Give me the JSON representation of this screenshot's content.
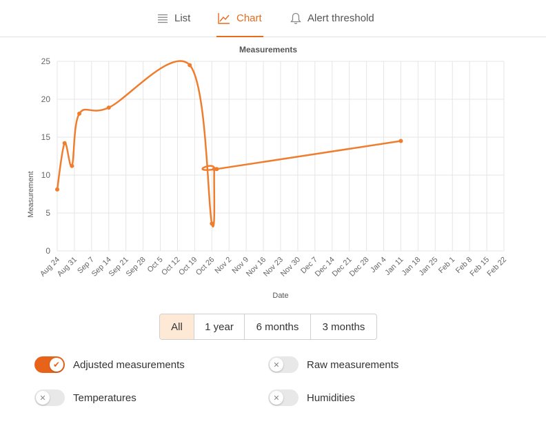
{
  "tabs": [
    {
      "label": "List",
      "icon": "list-icon",
      "active": false
    },
    {
      "label": "Chart",
      "icon": "chart-line-icon",
      "active": true
    },
    {
      "label": "Alert threshold",
      "icon": "bell-icon",
      "active": false
    }
  ],
  "colors": {
    "accent": "#e86a1c",
    "line": "#ef7d2d",
    "grid": "#e6e6e6",
    "active_range_bg": "#fde9d6"
  },
  "chart_data": {
    "type": "line",
    "title": "Measurements",
    "xlabel": "Date",
    "ylabel": "Measurement",
    "ylim": [
      0,
      25
    ],
    "yticks": [
      0,
      5,
      10,
      15,
      20,
      25
    ],
    "xticks": [
      "Aug 24",
      "Aug 31",
      "Sep 7",
      "Sep 14",
      "Sep 21",
      "Sep 28",
      "Oct 5",
      "Oct 12",
      "Oct 19",
      "Oct 26",
      "Nov 2",
      "Nov 9",
      "Nov 16",
      "Nov 23",
      "Nov 30",
      "Dec 7",
      "Dec 14",
      "Dec 21",
      "Dec 28",
      "Jan 4",
      "Jan 11",
      "Jan 18",
      "Jan 25",
      "Feb 1",
      "Feb 8",
      "Feb 15",
      "Feb 22"
    ],
    "grid": true,
    "series": [
      {
        "points": [
          {
            "x": "Aug 24",
            "y": 8.1
          },
          {
            "x": "Aug 27",
            "y": 14.2
          },
          {
            "x": "Aug 30",
            "y": 11.2
          },
          {
            "x": "Sep 2",
            "y": 18.1
          },
          {
            "x": "Sep 14",
            "y": 18.9
          },
          {
            "x": "Oct 17",
            "y": 24.5
          },
          {
            "x": "Oct 26",
            "y": 3.6
          },
          {
            "x": "Oct 27",
            "y": 10.8
          },
          {
            "x": "Oct 28",
            "y": 10.8
          },
          {
            "x": "Jan 11",
            "y": 14.5
          }
        ]
      }
    ]
  },
  "ranges": [
    {
      "label": "All",
      "active": true
    },
    {
      "label": "1 year",
      "active": false
    },
    {
      "label": "6 months",
      "active": false
    },
    {
      "label": "3 months",
      "active": false
    }
  ],
  "toggles": [
    {
      "label": "Adjusted measurements",
      "on": true
    },
    {
      "label": "Raw measurements",
      "on": false
    },
    {
      "label": "Temperatures",
      "on": false
    },
    {
      "label": "Humidities",
      "on": false
    }
  ]
}
